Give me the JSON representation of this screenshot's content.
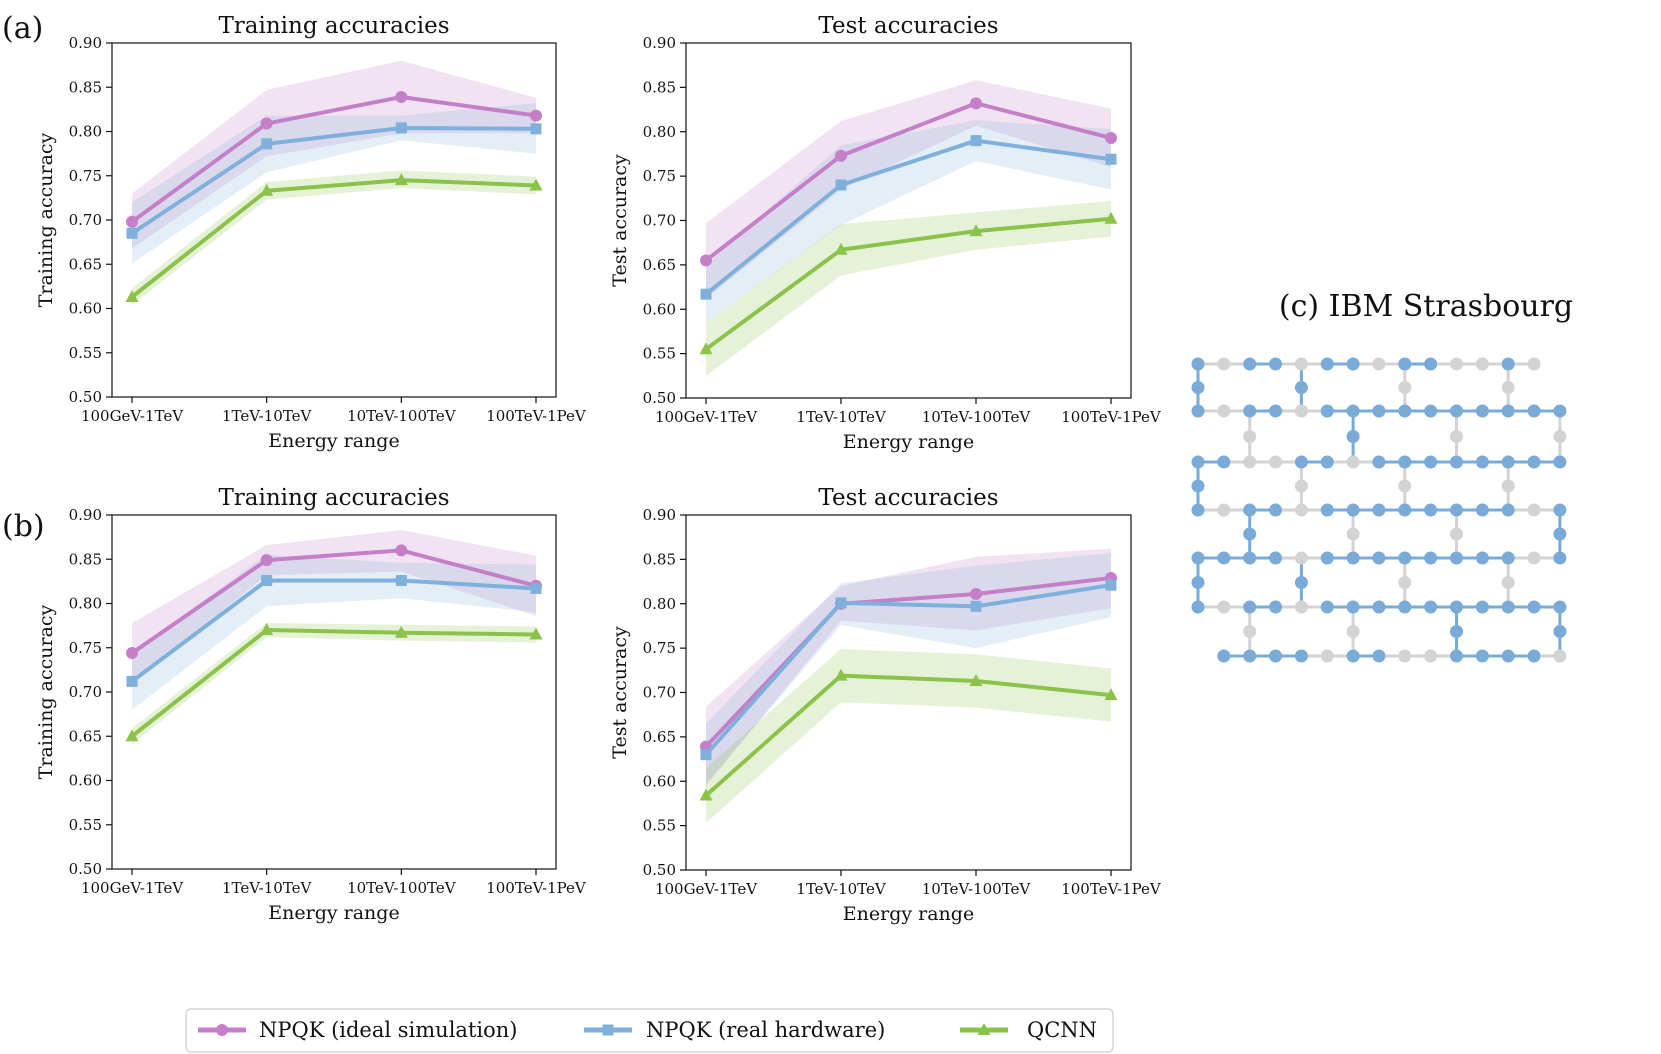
{
  "figure": {
    "panel_labels": [
      "(a)",
      "(b)"
    ],
    "legend": [
      {
        "label": "NPQK (ideal simulation)",
        "color": "#c57fc8",
        "marker": "circle"
      },
      {
        "label": "NPQK (real hardware)",
        "color": "#7fb0dc",
        "marker": "square"
      },
      {
        "label": "QCNN",
        "color": "#8bc34a",
        "marker": "triangle"
      }
    ],
    "ibm": {
      "label": "(c) IBM Strasbourg",
      "active_color": "#7aaad8",
      "inactive_color": "#d3d3d3"
    }
  },
  "chart_data": [
    {
      "type": "line",
      "panel": "(a)",
      "title": "Training accuracies",
      "xlabel": "Energy range",
      "ylabel": "Training accuracy",
      "categories": [
        "100GeV-1TeV",
        "1TeV-10TeV",
        "10TeV-100TeV",
        "100TeV-1PeV"
      ],
      "ylim": [
        0.5,
        0.9
      ],
      "yticks": [
        "0.50",
        "0.55",
        "0.60",
        "0.65",
        "0.70",
        "0.75",
        "0.80",
        "0.85",
        "0.90"
      ],
      "series": [
        {
          "name": "NPQK (ideal simulation)",
          "color": "#c57fc8",
          "marker": "circle",
          "values": [
            0.698,
            0.809,
            0.839,
            0.818
          ],
          "lower": [
            0.668,
            0.772,
            0.798,
            0.798
          ],
          "upper": [
            0.73,
            0.847,
            0.88,
            0.838
          ]
        },
        {
          "name": "NPQK (real hardware)",
          "color": "#7fb0dc",
          "marker": "square",
          "values": [
            0.685,
            0.786,
            0.804,
            0.803
          ],
          "lower": [
            0.651,
            0.754,
            0.79,
            0.775
          ],
          "upper": [
            0.72,
            0.818,
            0.818,
            0.832
          ]
        },
        {
          "name": "QCNN",
          "color": "#8bc34a",
          "marker": "triangle",
          "values": [
            0.613,
            0.733,
            0.745,
            0.739
          ],
          "lower": [
            0.604,
            0.723,
            0.736,
            0.729
          ],
          "upper": [
            0.623,
            0.743,
            0.756,
            0.749
          ]
        }
      ]
    },
    {
      "type": "line",
      "panel": "(a)",
      "title": "Test accuracies",
      "xlabel": "Energy range",
      "ylabel": "Test accuracy",
      "categories": [
        "100GeV-1TeV",
        "1TeV-10TeV",
        "10TeV-100TeV",
        "100TeV-1PeV"
      ],
      "ylim": [
        0.5,
        0.9
      ],
      "yticks": [
        "0.50",
        "0.55",
        "0.60",
        "0.65",
        "0.70",
        "0.75",
        "0.80",
        "0.85",
        "0.90"
      ],
      "series": [
        {
          "name": "NPQK (ideal simulation)",
          "color": "#c57fc8",
          "marker": "circle",
          "values": [
            0.655,
            0.773,
            0.832,
            0.793
          ],
          "lower": [
            0.612,
            0.735,
            0.807,
            0.76
          ],
          "upper": [
            0.697,
            0.812,
            0.858,
            0.826
          ]
        },
        {
          "name": "NPQK (real hardware)",
          "color": "#7fb0dc",
          "marker": "square",
          "values": [
            0.617,
            0.74,
            0.79,
            0.769
          ],
          "lower": [
            0.585,
            0.695,
            0.767,
            0.735
          ],
          "upper": [
            0.65,
            0.785,
            0.813,
            0.803
          ]
        },
        {
          "name": "QCNN",
          "color": "#8bc34a",
          "marker": "triangle",
          "values": [
            0.555,
            0.667,
            0.688,
            0.702
          ],
          "lower": [
            0.525,
            0.638,
            0.667,
            0.682
          ],
          "upper": [
            0.585,
            0.696,
            0.709,
            0.722
          ]
        }
      ]
    },
    {
      "type": "line",
      "panel": "(b)",
      "title": "Training accuracies",
      "xlabel": "Energy range",
      "ylabel": "Training accuracy",
      "categories": [
        "100GeV-1TeV",
        "1TeV-10TeV",
        "10TeV-100TeV",
        "100TeV-1PeV"
      ],
      "ylim": [
        0.5,
        0.9
      ],
      "yticks": [
        "0.50",
        "0.55",
        "0.60",
        "0.65",
        "0.70",
        "0.75",
        "0.80",
        "0.85",
        "0.90"
      ],
      "series": [
        {
          "name": "NPQK (ideal simulation)",
          "color": "#c57fc8",
          "marker": "circle",
          "values": [
            0.744,
            0.849,
            0.86,
            0.82
          ],
          "lower": [
            0.71,
            0.832,
            0.836,
            0.786
          ],
          "upper": [
            0.778,
            0.866,
            0.883,
            0.854
          ]
        },
        {
          "name": "NPQK (real hardware)",
          "color": "#7fb0dc",
          "marker": "square",
          "values": [
            0.712,
            0.826,
            0.826,
            0.817
          ],
          "lower": [
            0.68,
            0.797,
            0.806,
            0.79
          ],
          "upper": [
            0.745,
            0.855,
            0.846,
            0.844
          ]
        },
        {
          "name": "QCNN",
          "color": "#8bc34a",
          "marker": "triangle",
          "values": [
            0.65,
            0.77,
            0.767,
            0.765
          ],
          "lower": [
            0.641,
            0.762,
            0.758,
            0.756
          ],
          "upper": [
            0.659,
            0.778,
            0.776,
            0.774
          ]
        }
      ]
    },
    {
      "type": "line",
      "panel": "(b)",
      "title": "Test accuracies",
      "xlabel": "Energy range",
      "ylabel": "Test accuracy",
      "categories": [
        "100GeV-1TeV",
        "1TeV-10TeV",
        "10TeV-100TeV",
        "100TeV-1PeV"
      ],
      "ylim": [
        0.5,
        0.9
      ],
      "yticks": [
        "0.50",
        "0.55",
        "0.60",
        "0.65",
        "0.70",
        "0.75",
        "0.80",
        "0.85",
        "0.90"
      ],
      "series": [
        {
          "name": "NPQK (ideal simulation)",
          "color": "#c57fc8",
          "marker": "circle",
          "values": [
            0.639,
            0.8,
            0.811,
            0.829
          ],
          "lower": [
            0.595,
            0.781,
            0.77,
            0.795
          ],
          "upper": [
            0.684,
            0.82,
            0.853,
            0.862
          ]
        },
        {
          "name": "NPQK (real hardware)",
          "color": "#7fb0dc",
          "marker": "square",
          "values": [
            0.63,
            0.801,
            0.797,
            0.821
          ],
          "lower": [
            0.597,
            0.776,
            0.75,
            0.785
          ],
          "upper": [
            0.665,
            0.823,
            0.843,
            0.857
          ]
        },
        {
          "name": "QCNN",
          "color": "#8bc34a",
          "marker": "triangle",
          "values": [
            0.584,
            0.719,
            0.713,
            0.697
          ],
          "lower": [
            0.553,
            0.689,
            0.683,
            0.667
          ],
          "upper": [
            0.615,
            0.749,
            0.743,
            0.727
          ]
        }
      ]
    }
  ]
}
